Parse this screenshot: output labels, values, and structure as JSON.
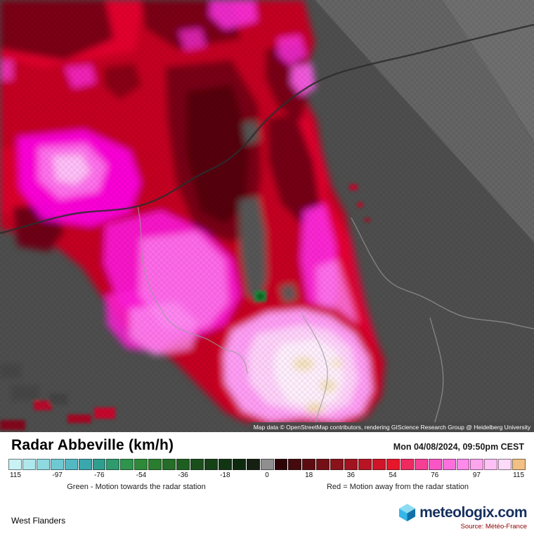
{
  "map": {
    "attribution": "Map data © OpenStreetMap contributors, rendering GIScience Research Group @ Heidelberg University",
    "background_color": "#4e4e4e"
  },
  "header": {
    "title": "Radar Abbeville (km/h)",
    "datetime": "Mon 04/08/2024, 09:50pm CEST"
  },
  "scale": {
    "colors": [
      "#c9f2f4",
      "#aee8ec",
      "#8fd9e0",
      "#6fc9d2",
      "#52b8c2",
      "#3aa7ad",
      "#2f9e8f",
      "#2e9a6d",
      "#2f944d",
      "#2e8a38",
      "#2a7c2e",
      "#256d28",
      "#1f5e21",
      "#1a4f1c",
      "#154117",
      "#113513",
      "#0d2a0f",
      "#152012",
      "#8f8f8f",
      "#2e0507",
      "#450a0d",
      "#5c0d12",
      "#731016",
      "#8a121b",
      "#a1131f",
      "#b81423",
      "#cf1527",
      "#e6162b",
      "#ee2a60",
      "#f43f95",
      "#f955c5",
      "#fc6fdd",
      "#ff8aec",
      "#ffa5ee",
      "#ffc0f5",
      "#ffdbfa",
      "#f2c083"
    ],
    "tick_labels": [
      "115",
      "-97",
      "-76",
      "-54",
      "-36",
      "-18",
      "0",
      "18",
      "36",
      "54",
      "76",
      "97",
      "115"
    ],
    "legend_left": "Green - Motion towards the radar station",
    "legend_right": "Red = Motion away from the radar station"
  },
  "footer": {
    "region": "West Flanders",
    "brand": "meteologix.com",
    "source": "Source: Météo-France"
  },
  "colors": {
    "brand_navy": "#16305e",
    "logo_blue_light": "#8edcf4",
    "logo_blue_mid": "#36b6e8",
    "logo_blue_dark": "#1272a8",
    "source_red": "#8b0000"
  }
}
